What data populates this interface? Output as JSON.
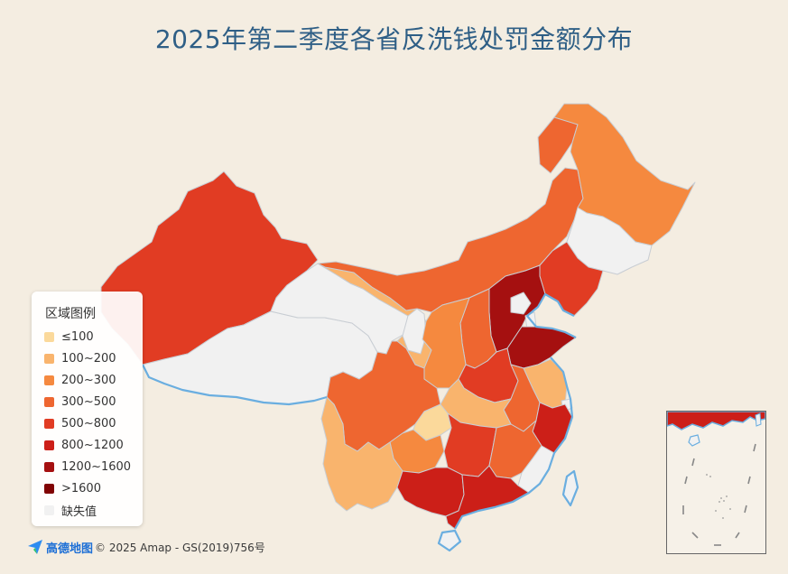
{
  "title": "2025年第二季度各省反洗钱处罚金额分布",
  "legend": {
    "title": "区域图例",
    "items": [
      {
        "label": "≤100",
        "color": "#fbd99b"
      },
      {
        "label": "100~200",
        "color": "#f9b46d"
      },
      {
        "label": "200~300",
        "color": "#f5893f"
      },
      {
        "label": "300~500",
        "color": "#ee6630"
      },
      {
        "label": "500~800",
        "color": "#e13c23"
      },
      {
        "label": "800~1200",
        "color": "#cc1f18"
      },
      {
        "label": "1200~1600",
        "color": "#a51010"
      },
      {
        "label": ">1600",
        "color": "#800303"
      },
      {
        "label": "缺失值",
        "color": "#f1f1f1"
      }
    ]
  },
  "map_data": {
    "regions": [
      {
        "name": "黑龙江",
        "bin": "200~300"
      },
      {
        "name": "吉林",
        "bin": "缺失值"
      },
      {
        "name": "辽宁",
        "bin": "500~800"
      },
      {
        "name": "内蒙古",
        "bin": "300~500"
      },
      {
        "name": "新疆",
        "bin": "500~800"
      },
      {
        "name": "西藏",
        "bin": "缺失值"
      },
      {
        "name": "青海",
        "bin": "缺失值"
      },
      {
        "name": "甘肃",
        "bin": "100~200"
      },
      {
        "name": "宁夏",
        "bin": "缺失值"
      },
      {
        "name": "陕西",
        "bin": "200~300"
      },
      {
        "name": "山西",
        "bin": "300~500"
      },
      {
        "name": "河北",
        "bin": "1200~1600"
      },
      {
        "name": "北京",
        "bin": "缺失值"
      },
      {
        "name": "天津",
        "bin": "缺失值"
      },
      {
        "name": "山东",
        "bin": "1200~1600"
      },
      {
        "name": "河南",
        "bin": "500~800"
      },
      {
        "name": "江苏",
        "bin": "100~200"
      },
      {
        "name": "安徽",
        "bin": "300~500"
      },
      {
        "name": "上海",
        "bin": "缺失值"
      },
      {
        "name": "浙江",
        "bin": "800~1200"
      },
      {
        "name": "湖北",
        "bin": "100~200"
      },
      {
        "name": "四川",
        "bin": "300~500"
      },
      {
        "name": "重庆",
        "bin": "≤100"
      },
      {
        "name": "贵州",
        "bin": "200~300"
      },
      {
        "name": "云南",
        "bin": "100~200"
      },
      {
        "name": "湖南",
        "bin": "500~800"
      },
      {
        "name": "江西",
        "bin": "300~500"
      },
      {
        "name": "福建",
        "bin": "缺失值"
      },
      {
        "name": "广西",
        "bin": "800~1200"
      },
      {
        "name": "广东",
        "bin": "800~1200"
      },
      {
        "name": "海南",
        "bin": "缺失值"
      },
      {
        "name": "台湾",
        "bin": "缺失值"
      }
    ]
  },
  "attribution": {
    "logo_text": "高德地图",
    "copyright": "© 2025 Amap - GS(2019)756号"
  }
}
